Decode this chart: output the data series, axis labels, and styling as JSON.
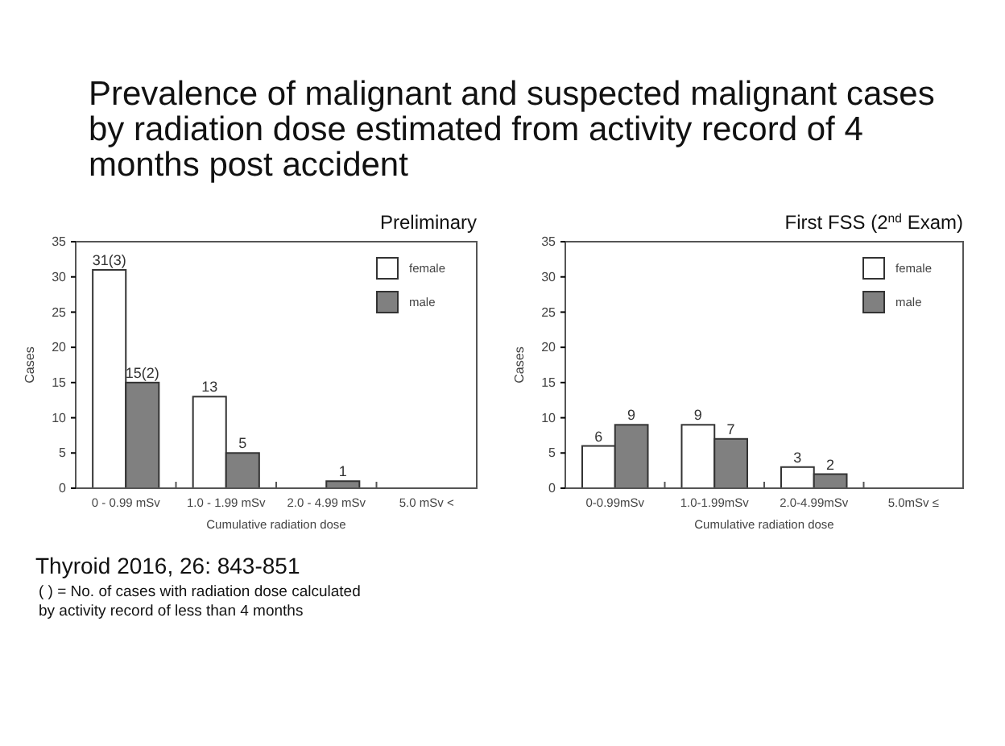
{
  "chart_data": [
    {
      "type": "other",
      "title": "Prevalence of malignant and suspected malignant cases by radiation dose estimated from activity record of 4  months post accident",
      "annotations": [
        "Thyroid 2016, 26: 843-851",
        "( ) = No. of cases with radiation dose calculated by activity record of less than 4 months"
      ]
    },
    {
      "type": "bar",
      "title": "Preliminary",
      "xlabel": "Cumulative radiation dose",
      "ylabel": "Cases",
      "categories": [
        "0 - 0.99 mSv",
        "1.0 - 1.99 mSv",
        "2.0 - 4.99 mSv",
        "5.0 mSv <"
      ],
      "ylim": [
        0,
        35
      ],
      "yticks": [
        0,
        5,
        10,
        15,
        20,
        25,
        30,
        35
      ],
      "legend": "top right",
      "grid": false,
      "series": [
        {
          "name": "female",
          "color": "#ffffff",
          "values": [
            31,
            13,
            0,
            0
          ],
          "value_labels": [
            "31(3)",
            "13",
            null,
            null
          ]
        },
        {
          "name": "male",
          "color": "#808080",
          "values": [
            15,
            5,
            1,
            0
          ],
          "value_labels": [
            "15(2)",
            "5",
            "1",
            null
          ]
        }
      ]
    },
    {
      "type": "bar",
      "title": "First FSS (2$^{nd}$ Exam)",
      "xlabel": "Cumulative radiation dose",
      "ylabel": "Cases",
      "categories": [
        "0-0.99mSv",
        "1.0-1.99mSv",
        "2.0-4.99mSv",
        "5.0mSv ≤"
      ],
      "ylim": [
        0,
        35
      ],
      "yticks": [
        0,
        5,
        10,
        15,
        20,
        25,
        30,
        35
      ],
      "legend": "top right",
      "grid": false,
      "series": [
        {
          "name": "female",
          "color": "#ffffff",
          "values": [
            6,
            9,
            3,
            0
          ],
          "value_labels": [
            "6",
            "9",
            "3",
            null
          ]
        },
        {
          "name": "male",
          "color": "#808080",
          "values": [
            9,
            7,
            2,
            0
          ],
          "value_labels": [
            "9",
            "7",
            "2",
            null
          ]
        }
      ]
    }
  ]
}
